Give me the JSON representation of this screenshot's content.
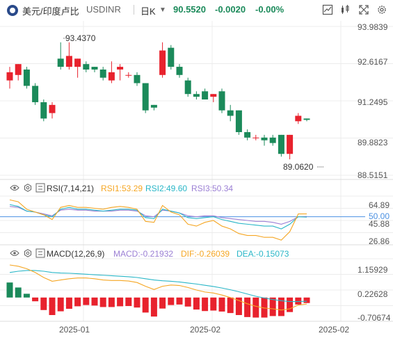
{
  "header": {
    "pair": "美元/印度卢比",
    "symbol": "USDINR",
    "period": "日K",
    "price": "90.5520",
    "change": "-0.0020",
    "change_pct": "-0.00%",
    "icons": [
      "chart-settings-icon",
      "indicator-icon",
      "fullscreen-icon",
      "settings-icon"
    ]
  },
  "main_axis": {
    "labels": [
      "93.9839",
      "92.6167",
      "91.2495",
      "89.8823",
      "88.5151"
    ]
  },
  "annotations": {
    "high": "93.4370",
    "low": "89.0620"
  },
  "rsi": {
    "title": "RSI(7,14,21)",
    "rsi1": "RSI1:53.29",
    "rsi2": "RSI2:49.60",
    "rsi3": "RSI3:50.34",
    "axis": [
      "64.89",
      "50.00",
      "45.88",
      "26.86"
    ],
    "colors": {
      "rsi1": "#f5a623",
      "rsi2": "#29b6c7",
      "rsi3": "#9b7fd4"
    }
  },
  "macd": {
    "title": "MACD(12,26,9)",
    "macd": "MACD:-0.21932",
    "dif": "DIF:-0.26039",
    "dea": "DEA:-0.15073",
    "axis": [
      "1.15929",
      "0.22628",
      "-0.70674"
    ],
    "colors": {
      "macd": "#9b7fd4",
      "dif": "#f5a623",
      "dea": "#29b6c7"
    }
  },
  "time_axis": [
    "2025-01",
    "2025-02",
    "2025-02"
  ],
  "colors": {
    "up": "#e8222d",
    "down": "#1b8a5a",
    "grid": "#ececec",
    "baseline": "#4a90e2"
  },
  "chart_data": {
    "type": "candlestick",
    "ylim": [
      88.5151,
      93.9839
    ],
    "candles": [
      {
        "o": 92.0,
        "c": 92.3,
        "h": 92.5,
        "l": 91.7
      },
      {
        "o": 92.2,
        "c": 92.6,
        "h": 92.6,
        "l": 92.0
      },
      {
        "o": 92.4,
        "c": 91.8,
        "h": 92.5,
        "l": 91.7
      },
      {
        "o": 91.8,
        "c": 91.2,
        "h": 91.9,
        "l": 91.1
      },
      {
        "o": 91.2,
        "c": 90.6,
        "h": 91.3,
        "l": 90.5
      },
      {
        "o": 90.8,
        "c": 91.1,
        "h": 91.2,
        "l": 90.6
      },
      {
        "o": 92.8,
        "c": 92.5,
        "h": 93.4,
        "l": 92.4
      },
      {
        "o": 92.5,
        "c": 92.9,
        "h": 93.4,
        "l": 92.4
      },
      {
        "o": 92.5,
        "c": 92.8,
        "h": 92.8,
        "l": 92.1
      },
      {
        "o": 92.6,
        "c": 92.4,
        "h": 92.7,
        "l": 92.3
      },
      {
        "o": 92.5,
        "c": 92.4,
        "h": 92.5,
        "l": 92.3
      },
      {
        "o": 92.4,
        "c": 92.1,
        "h": 92.5,
        "l": 92.0
      },
      {
        "o": 92.0,
        "c": 92.3,
        "h": 92.7,
        "l": 91.9
      },
      {
        "o": 92.4,
        "c": 92.5,
        "h": 92.6,
        "l": 92.0
      },
      {
        "o": 92.2,
        "c": 92.2,
        "h": 92.3,
        "l": 92.1
      },
      {
        "o": 92.2,
        "c": 91.9,
        "h": 92.3,
        "l": 91.8
      },
      {
        "o": 91.9,
        "c": 90.9,
        "h": 91.9,
        "l": 90.8
      },
      {
        "o": 91.1,
        "c": 91.0,
        "h": 91.1,
        "l": 90.9
      },
      {
        "o": 92.2,
        "c": 93.1,
        "h": 93.4,
        "l": 92.1
      },
      {
        "o": 93.2,
        "c": 92.5,
        "h": 93.3,
        "l": 92.4
      },
      {
        "o": 92.5,
        "c": 92.2,
        "h": 92.6,
        "l": 92.1
      },
      {
        "o": 92.0,
        "c": 91.5,
        "h": 92.1,
        "l": 91.4
      },
      {
        "o": 91.5,
        "c": 91.4,
        "h": 91.6,
        "l": 91.3
      },
      {
        "o": 91.6,
        "c": 91.3,
        "h": 91.7,
        "l": 91.3
      },
      {
        "o": 91.4,
        "c": 91.5,
        "h": 91.5,
        "l": 91.2
      },
      {
        "o": 91.6,
        "c": 90.9,
        "h": 91.7,
        "l": 90.8
      },
      {
        "o": 90.9,
        "c": 90.7,
        "h": 91.1,
        "l": 90.5
      },
      {
        "o": 90.9,
        "c": 90.1,
        "h": 90.9,
        "l": 90.0
      },
      {
        "o": 90.1,
        "c": 89.9,
        "h": 90.2,
        "l": 89.8
      },
      {
        "o": 89.9,
        "c": 89.9,
        "h": 90.0,
        "l": 89.8
      },
      {
        "o": 89.9,
        "c": 89.8,
        "h": 90.0,
        "l": 89.6
      },
      {
        "o": 89.9,
        "c": 89.7,
        "h": 90.0,
        "l": 89.6
      },
      {
        "o": 90.0,
        "c": 89.3,
        "h": 90.0,
        "l": 89.2
      },
      {
        "o": 89.3,
        "c": 90.0,
        "h": 90.0,
        "l": 89.1
      },
      {
        "o": 90.5,
        "c": 90.7,
        "h": 90.8,
        "l": 90.4
      },
      {
        "o": 90.6,
        "c": 90.55,
        "h": 90.6,
        "l": 90.5
      }
    ],
    "rsi_ylim": [
      20,
      72
    ],
    "rsi1": [
      68,
      66,
      58,
      55,
      52,
      47,
      60,
      62,
      60,
      60,
      59,
      58,
      60,
      61,
      60,
      58,
      45,
      44,
      62,
      55,
      52,
      42,
      40,
      44,
      46,
      40,
      37,
      32,
      30,
      30,
      28,
      28,
      25,
      34,
      53,
      53
    ],
    "rsi2": [
      63,
      61,
      56,
      55,
      52,
      50,
      58,
      60,
      58,
      58,
      57,
      56,
      57,
      58,
      58,
      57,
      49,
      48,
      58,
      56,
      54,
      49,
      48,
      49,
      50,
      47,
      45,
      43,
      42,
      41,
      40,
      40,
      37,
      42,
      50,
      49.6
    ],
    "rsi3": [
      61,
      60,
      56,
      55,
      53,
      51,
      57,
      58,
      57,
      57,
      56,
      56,
      56,
      57,
      57,
      56,
      51,
      50,
      57,
      56,
      54,
      51,
      50,
      51,
      51,
      49,
      48,
      47,
      46,
      45,
      45,
      44,
      42,
      45,
      50,
      50.3
    ],
    "macd_ylim": [
      -0.95,
      1.55
    ],
    "dif": [
      1.3,
      1.25,
      1.15,
      1.0,
      0.8,
      0.65,
      0.7,
      0.75,
      0.78,
      0.78,
      0.75,
      0.7,
      0.68,
      0.68,
      0.66,
      0.6,
      0.45,
      0.32,
      0.45,
      0.5,
      0.48,
      0.4,
      0.3,
      0.22,
      0.18,
      0.1,
      0.0,
      -0.12,
      -0.25,
      -0.35,
      -0.42,
      -0.45,
      -0.5,
      -0.45,
      -0.3,
      -0.26
    ],
    "dea": [
      1.0,
      1.05,
      1.08,
      1.08,
      1.05,
      1.0,
      0.98,
      0.97,
      0.95,
      0.93,
      0.91,
      0.89,
      0.87,
      0.85,
      0.83,
      0.8,
      0.75,
      0.7,
      0.67,
      0.65,
      0.62,
      0.58,
      0.54,
      0.49,
      0.44,
      0.38,
      0.31,
      0.23,
      0.14,
      0.05,
      -0.02,
      -0.08,
      -0.13,
      -0.16,
      -0.16,
      -0.15
    ],
    "macd_hist": [
      0.6,
      0.4,
      0.15,
      -0.15,
      -0.5,
      -0.7,
      -0.55,
      -0.45,
      -0.35,
      -0.3,
      -0.32,
      -0.38,
      -0.38,
      -0.35,
      -0.34,
      -0.4,
      -0.6,
      -0.76,
      -0.44,
      -0.3,
      -0.28,
      -0.36,
      -0.48,
      -0.54,
      -0.52,
      -0.56,
      -0.62,
      -0.7,
      -0.78,
      -0.8,
      -0.8,
      -0.74,
      -0.74,
      -0.58,
      -0.28,
      -0.22
    ]
  }
}
